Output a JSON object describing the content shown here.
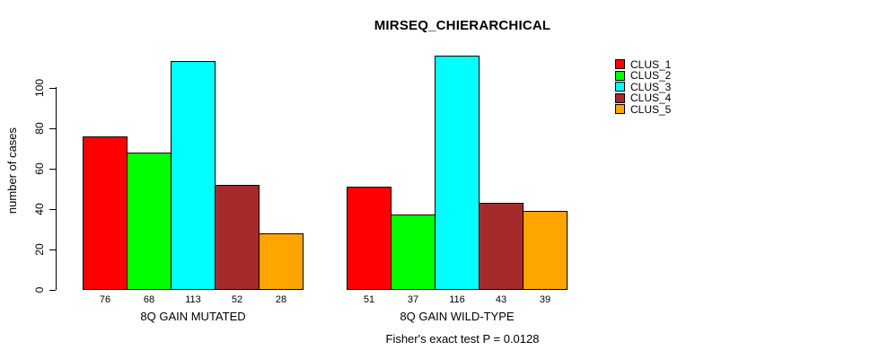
{
  "chart_data": {
    "type": "bar",
    "title": "MIRSEQ_CHIERARCHICAL",
    "ylabel": "number of cases",
    "xlabel": "",
    "yticks": [
      0,
      20,
      40,
      60,
      80,
      100
    ],
    "ylim": [
      0,
      117
    ],
    "grid": false,
    "legend_position": "right",
    "categories": [
      "8Q GAIN MUTATED",
      "8Q GAIN WILD-TYPE"
    ],
    "series": [
      {
        "name": "CLUS_1",
        "color": "#ff0000",
        "values": [
          76,
          51
        ]
      },
      {
        "name": "CLUS_2",
        "color": "#00ff00",
        "values": [
          68,
          37
        ]
      },
      {
        "name": "CLUS_3",
        "color": "#00ffff",
        "values": [
          113,
          116
        ]
      },
      {
        "name": "CLUS_4",
        "color": "#a52a2a",
        "values": [
          52,
          43
        ]
      },
      {
        "name": "CLUS_5",
        "color": "#ffa500",
        "values": [
          28,
          39
        ]
      }
    ],
    "bar_value_labels": [
      [
        76,
        68,
        113,
        52,
        28
      ],
      [
        51,
        37,
        116,
        43,
        39
      ]
    ],
    "annotation": "Fisher's exact test P = 0.0128"
  }
}
